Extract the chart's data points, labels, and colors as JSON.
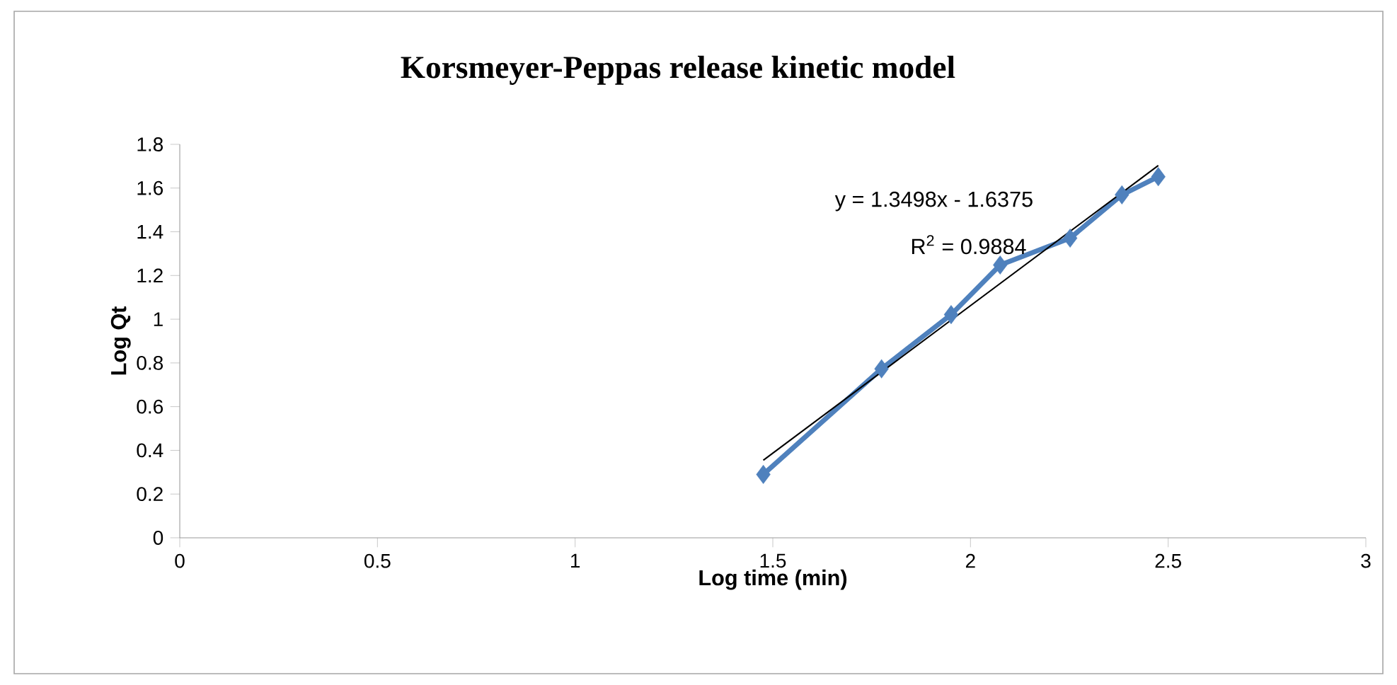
{
  "chart_data": {
    "type": "line",
    "title": "Korsmeyer-Peppas release kinetic model",
    "xlabel": "Log time (min)",
    "ylabel": "Log Qt",
    "x": [
      1.476,
      1.775,
      1.951,
      2.075,
      2.252,
      2.383,
      2.475
    ],
    "xlim": [
      0,
      3
    ],
    "xticks": [
      0,
      0.5,
      1,
      1.5,
      2,
      2.5,
      3
    ],
    "ylim": [
      0,
      1.8
    ],
    "yticks": [
      0,
      0.2,
      0.4,
      0.6,
      0.8,
      1,
      1.2,
      1.4,
      1.6,
      1.8
    ],
    "series": [
      {
        "color": "#4f81bd",
        "marker": "diamond",
        "line_style": "solid",
        "values": [
          0.29,
          0.773,
          1.021,
          1.248,
          1.371,
          1.569,
          1.652
        ]
      },
      {
        "type": "line",
        "x": [
          1.476,
          2.475
        ],
        "values": [
          0.355,
          1.703
        ],
        "color": "#000000",
        "marker": "none",
        "line_style": "solid"
      }
    ],
    "annotations": [
      "y = 1.3498x - 1.6375",
      "R$^{2}$ = 0.9884"
    ]
  }
}
